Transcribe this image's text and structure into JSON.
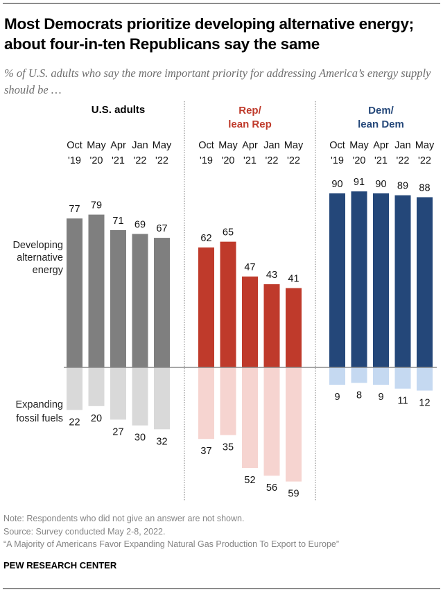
{
  "title": "Most Democrats prioritize developing alternative energy; about four-in-ten Republicans say the same",
  "subtitle": "% of U.S. adults who say the more important priority for addressing America’s energy supply should be …",
  "notes": {
    "note": "Note: Respondents who did not give an answer are not shown.",
    "source": "Source: Survey conducted May 2-8, 2022.",
    "report": "“A Majority of Americans Favor Expanding Natural Gas Production To Export to Europe”",
    "brand": "PEW RESEARCH CENTER"
  },
  "chart_data": {
    "type": "bar",
    "title": "Most Democrats prioritize developing alternative energy; about four-in-ten Republicans say the same",
    "subtitle": "% of U.S. adults who say the more important priority for addressing America’s energy supply should be …",
    "categories": [
      {
        "month": "Oct",
        "year": "'19"
      },
      {
        "month": "May",
        "year": "'20"
      },
      {
        "month": "Apr",
        "year": "'21"
      },
      {
        "month": "Jan",
        "year": "'22"
      },
      {
        "month": "May",
        "year": "'22"
      }
    ],
    "row_labels": {
      "positive": [
        "Developing",
        "alternative",
        "energy"
      ],
      "negative": [
        "Expanding",
        "fossil fuels"
      ]
    },
    "ylim": [
      -59,
      91
    ],
    "grid": false,
    "panels": [
      {
        "name": "U.S. adults",
        "title_lines": [
          "U.S. adults"
        ],
        "title_color": "#000000",
        "series": [
          {
            "name": "Developing alternative energy",
            "values": [
              77,
              79,
              71,
              69,
              67
            ],
            "color": "#7f7f7f"
          },
          {
            "name": "Expanding fossil fuels",
            "values": [
              22,
              20,
              27,
              30,
              32
            ],
            "color": "#d9d9d9"
          }
        ]
      },
      {
        "name": "Rep/lean Rep",
        "title_lines": [
          "Rep/",
          "lean Rep"
        ],
        "title_color": "#bf3a2b",
        "series": [
          {
            "name": "Developing alternative energy",
            "values": [
              62,
              65,
              47,
              43,
              41
            ],
            "color": "#bf3a2b"
          },
          {
            "name": "Expanding fossil fuels",
            "values": [
              37,
              35,
              52,
              56,
              59
            ],
            "color": "#f6d4d0"
          }
        ]
      },
      {
        "name": "Dem/lean Dem",
        "title_lines": [
          "Dem/",
          "lean Dem"
        ],
        "title_color": "#244779",
        "series": [
          {
            "name": "Developing alternative energy",
            "values": [
              90,
              91,
              90,
              89,
              88
            ],
            "color": "#244779"
          },
          {
            "name": "Expanding fossil fuels",
            "values": [
              9,
              8,
              9,
              11,
              12
            ],
            "color": "#c5d9f1"
          }
        ]
      }
    ]
  }
}
